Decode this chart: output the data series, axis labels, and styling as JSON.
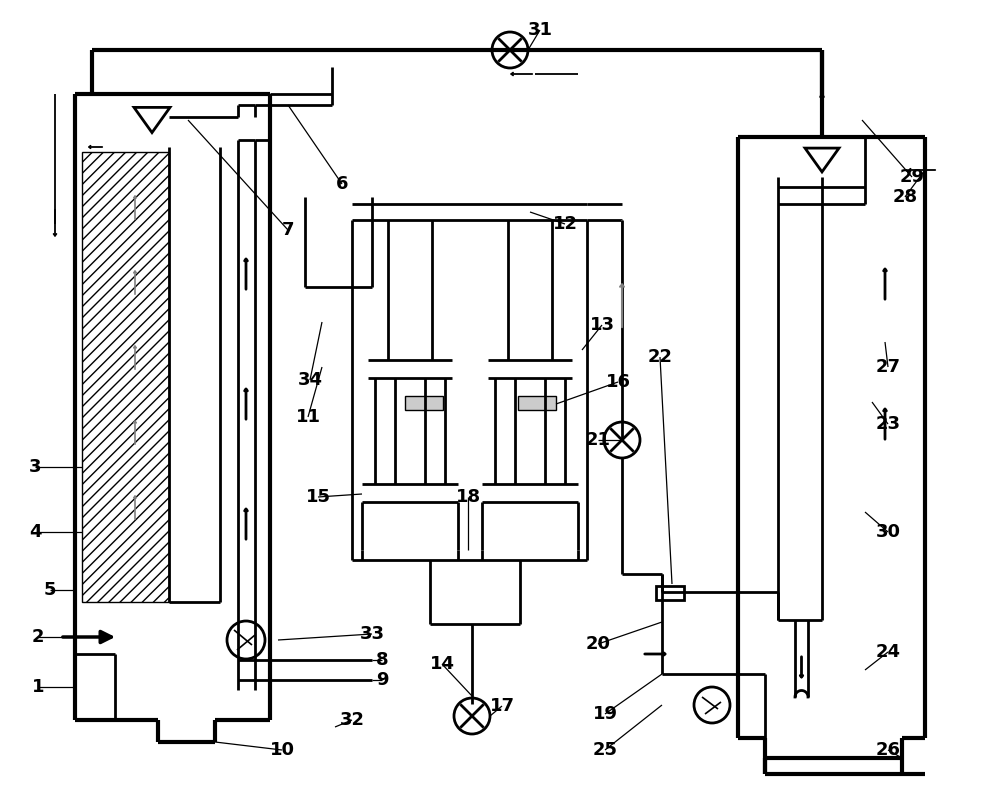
{
  "bg_color": "#ffffff",
  "lc": "#000000",
  "lw": 2.0,
  "thin_lw": 1.3,
  "thick_lw": 3.0,
  "label_fs": 13,
  "figsize": [
    10.0,
    8.02
  ],
  "dpi": 100
}
